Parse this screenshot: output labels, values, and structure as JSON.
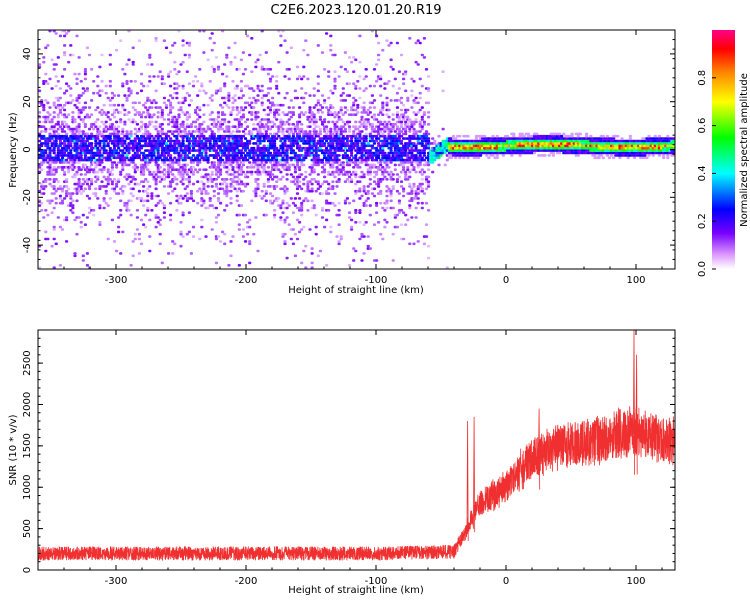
{
  "title": "C2E6.2023.120.01.20.R19",
  "chart_data": [
    {
      "type": "heatmap",
      "xlabel": "Height of straight line (km)",
      "ylabel": "Frequency (Hz)",
      "xlim": [
        -360,
        130
      ],
      "ylim": [
        -50,
        50
      ],
      "x_ticks": [
        -300,
        -200,
        -100,
        0,
        100
      ],
      "y_ticks": [
        -40,
        -20,
        0,
        20,
        40
      ],
      "grid": false,
      "colorbar": {
        "label": "Normalized spectral amplitude",
        "ticks": [
          "0.0",
          "0.2",
          "0.4",
          "0.6",
          "0.8"
        ],
        "range": [
          0,
          1
        ],
        "colors": [
          "#ffffff",
          "#cc88ff",
          "#7700ff",
          "#0000ff",
          "#00ffff",
          "#00ff00",
          "#ffff00",
          "#ff8800",
          "#ff0000",
          "#ff0088"
        ]
      },
      "regions": [
        {
          "x_range": [
            -360,
            -60
          ],
          "center_freq_hz": 0,
          "core_halfwidth_hz": 6,
          "amplitude": "0.05-0.3",
          "description": "noisy band"
        },
        {
          "x_range": [
            -60,
            -45
          ],
          "center_freq_hz": -4,
          "amplitude": "0.3-0.5"
        },
        {
          "x_range": [
            -45,
            130
          ],
          "center_freq_hz": 1,
          "core_halfwidth_hz": 2,
          "amplitude": "0.5-0.95"
        }
      ]
    },
    {
      "type": "line",
      "xlabel": "Height of straight line (km)",
      "ylabel": "SNR (10 * v/v)",
      "xlim": [
        -360,
        130
      ],
      "ylim": [
        0,
        2900
      ],
      "x_ticks": [
        -300,
        -200,
        -100,
        0,
        100
      ],
      "y_ticks": [
        0,
        500,
        1000,
        1500,
        2000,
        2500
      ],
      "grid": false,
      "series_color": "#f03030",
      "envelope": [
        {
          "x": -360,
          "y": 200
        },
        {
          "x": -100,
          "y": 200
        },
        {
          "x": -40,
          "y": 220
        },
        {
          "x": -30,
          "y": 500
        },
        {
          "x": -20,
          "y": 800
        },
        {
          "x": 0,
          "y": 1000
        },
        {
          "x": 20,
          "y": 1350
        },
        {
          "x": 40,
          "y": 1500
        },
        {
          "x": 80,
          "y": 1600
        },
        {
          "x": 100,
          "y": 1650
        },
        {
          "x": 130,
          "y": 1550
        }
      ],
      "spikes": [
        {
          "x": -30,
          "y": 1800
        },
        {
          "x": -25,
          "y": 1850
        },
        {
          "x": 25,
          "y": 1950
        },
        {
          "x": 98,
          "y": 2900
        },
        {
          "x": 100,
          "y": 2600
        }
      ]
    }
  ]
}
